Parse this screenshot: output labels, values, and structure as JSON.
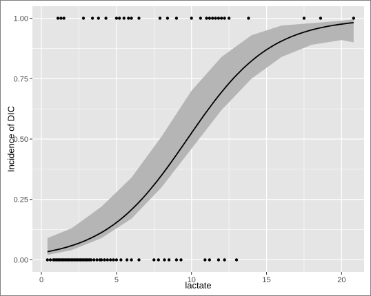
{
  "chart_data": {
    "type": "line",
    "title": "",
    "xlabel": "lactate",
    "ylabel": "Incidence of DIC",
    "xlim": [
      -0.6,
      21.5
    ],
    "ylim": [
      -0.05,
      1.05
    ],
    "x_ticks": [
      0,
      5,
      10,
      15,
      20
    ],
    "x_tick_labels": [
      "0",
      "5",
      "10",
      "15",
      "20"
    ],
    "y_ticks": [
      0.0,
      0.25,
      0.5,
      0.75,
      1.0
    ],
    "y_tick_labels": [
      "0.00",
      "0.25",
      "0.50",
      "0.75",
      "1.00"
    ],
    "grid": true,
    "legend": "none",
    "colors": {
      "panel": "#e5e5e5",
      "grid": "#ffffff",
      "band": "#b5b5b5",
      "line": "#000000",
      "points": "#000000"
    },
    "fit": {
      "model": "logistic",
      "intercept": -3.5,
      "slope": 0.36,
      "x_range": [
        0.4,
        20.8
      ]
    },
    "confidence_band": {
      "x": [
        0.4,
        2,
        4,
        6,
        8,
        10,
        12,
        14,
        16,
        18,
        20,
        20.8
      ],
      "lower": [
        0.02,
        0.04,
        0.09,
        0.17,
        0.3,
        0.46,
        0.62,
        0.75,
        0.84,
        0.89,
        0.91,
        0.9
      ],
      "upper": [
        0.09,
        0.13,
        0.22,
        0.34,
        0.51,
        0.7,
        0.84,
        0.93,
        0.97,
        0.98,
        0.99,
        0.995
      ]
    },
    "series": [
      {
        "type": "scatter",
        "y_value": 0,
        "x": [
          0.4,
          0.6,
          0.8,
          0.9,
          1.0,
          1.1,
          1.2,
          1.3,
          1.4,
          1.5,
          1.6,
          1.7,
          1.8,
          1.9,
          2.0,
          2.1,
          2.2,
          2.3,
          2.4,
          2.5,
          2.6,
          2.7,
          2.8,
          2.9,
          3.0,
          3.1,
          3.2,
          3.3,
          3.5,
          3.7,
          3.9,
          4.0,
          4.2,
          4.4,
          4.6,
          4.8,
          5.0,
          5.3,
          5.7,
          6.0,
          6.5,
          7.5,
          7.8,
          8.2,
          8.5,
          9.0,
          9.3,
          10.9,
          11.2,
          11.8,
          12.2,
          13.0
        ]
      },
      {
        "type": "scatter",
        "y_value": 1,
        "x": [
          1.1,
          1.3,
          1.5,
          2.8,
          3.4,
          3.8,
          4.3,
          5.0,
          5.2,
          5.5,
          5.8,
          6.0,
          6.5,
          7.9,
          8.4,
          9.0,
          10.0,
          10.6,
          11.0,
          11.2,
          11.4,
          11.6,
          11.8,
          12.0,
          12.2,
          12.5,
          13.8,
          17.5,
          18.6,
          20.8
        ]
      }
    ]
  }
}
